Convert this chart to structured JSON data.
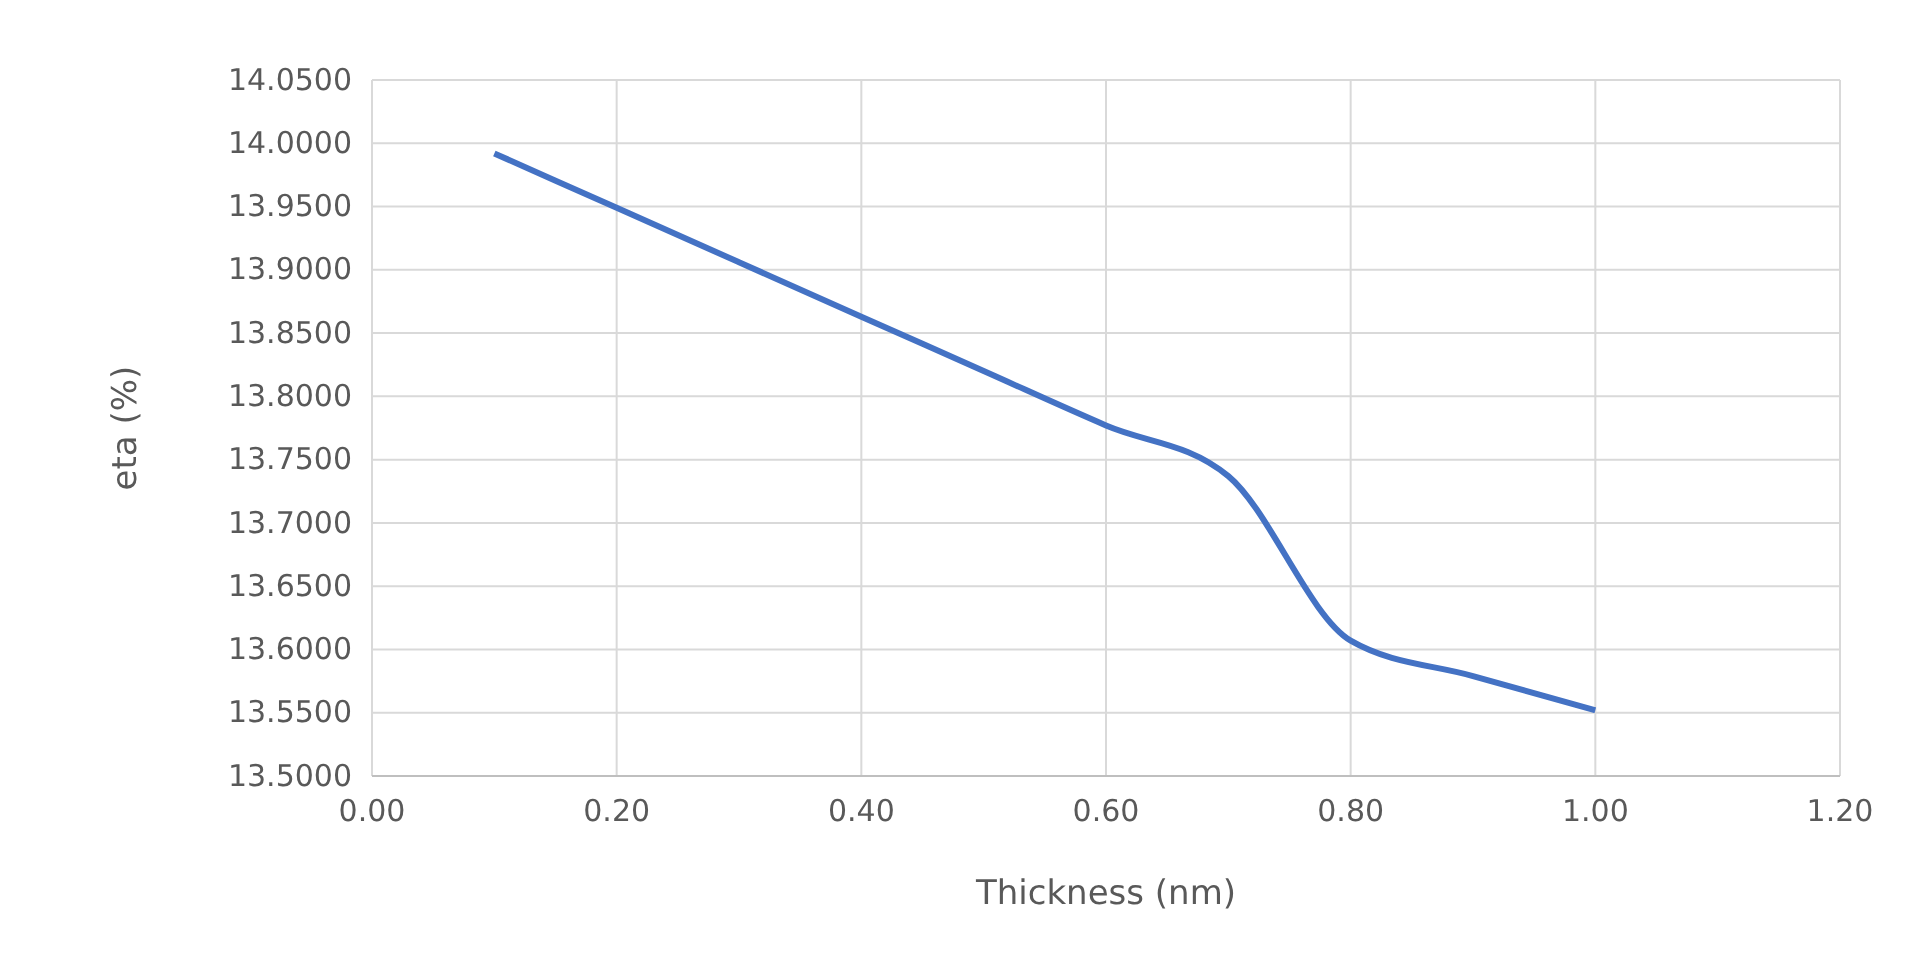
{
  "chart_data": {
    "type": "line",
    "xlabel": "Thickness (nm)",
    "ylabel": "eta (%)",
    "x": [
      0.1,
      0.2,
      0.3,
      0.4,
      0.5,
      0.6,
      0.7,
      0.8,
      0.9,
      1.0
    ],
    "series": [
      {
        "color": "#4472c4",
        "values": [
          13.992,
          13.949,
          13.906,
          13.863,
          13.82,
          13.777,
          13.737,
          13.607,
          13.579,
          13.552
        ]
      }
    ],
    "xlim": [
      0,
      1.2
    ],
    "xticks": [
      {
        "value": 0,
        "label": "0.00"
      },
      {
        "value": 0.2,
        "label": "0.20"
      },
      {
        "value": 0.4,
        "label": "0.40"
      },
      {
        "value": 0.6,
        "label": "0.60"
      },
      {
        "value": 0.8,
        "label": "0.80"
      },
      {
        "value": 1.0,
        "label": "1.00"
      },
      {
        "value": 1.2,
        "label": "1.20"
      }
    ],
    "ylim": [
      13.5,
      14.05
    ],
    "yticks": [
      {
        "value": 13.5,
        "label": "13.5000"
      },
      {
        "value": 13.55,
        "label": "13.5500"
      },
      {
        "value": 13.6,
        "label": "13.6000"
      },
      {
        "value": 13.65,
        "label": "13.6500"
      },
      {
        "value": 13.7,
        "label": "13.7000"
      },
      {
        "value": 13.75,
        "label": "13.7500"
      },
      {
        "value": 13.8,
        "label": "13.8000"
      },
      {
        "value": 13.85,
        "label": "13.8500"
      },
      {
        "value": 13.9,
        "label": "13.9000"
      },
      {
        "value": 13.95,
        "label": "13.9500"
      },
      {
        "value": 14.0,
        "label": "14.0000"
      },
      {
        "value": 14.05,
        "label": "14.0500"
      }
    ],
    "grid": true,
    "marker": "none",
    "line_style": "solid"
  }
}
